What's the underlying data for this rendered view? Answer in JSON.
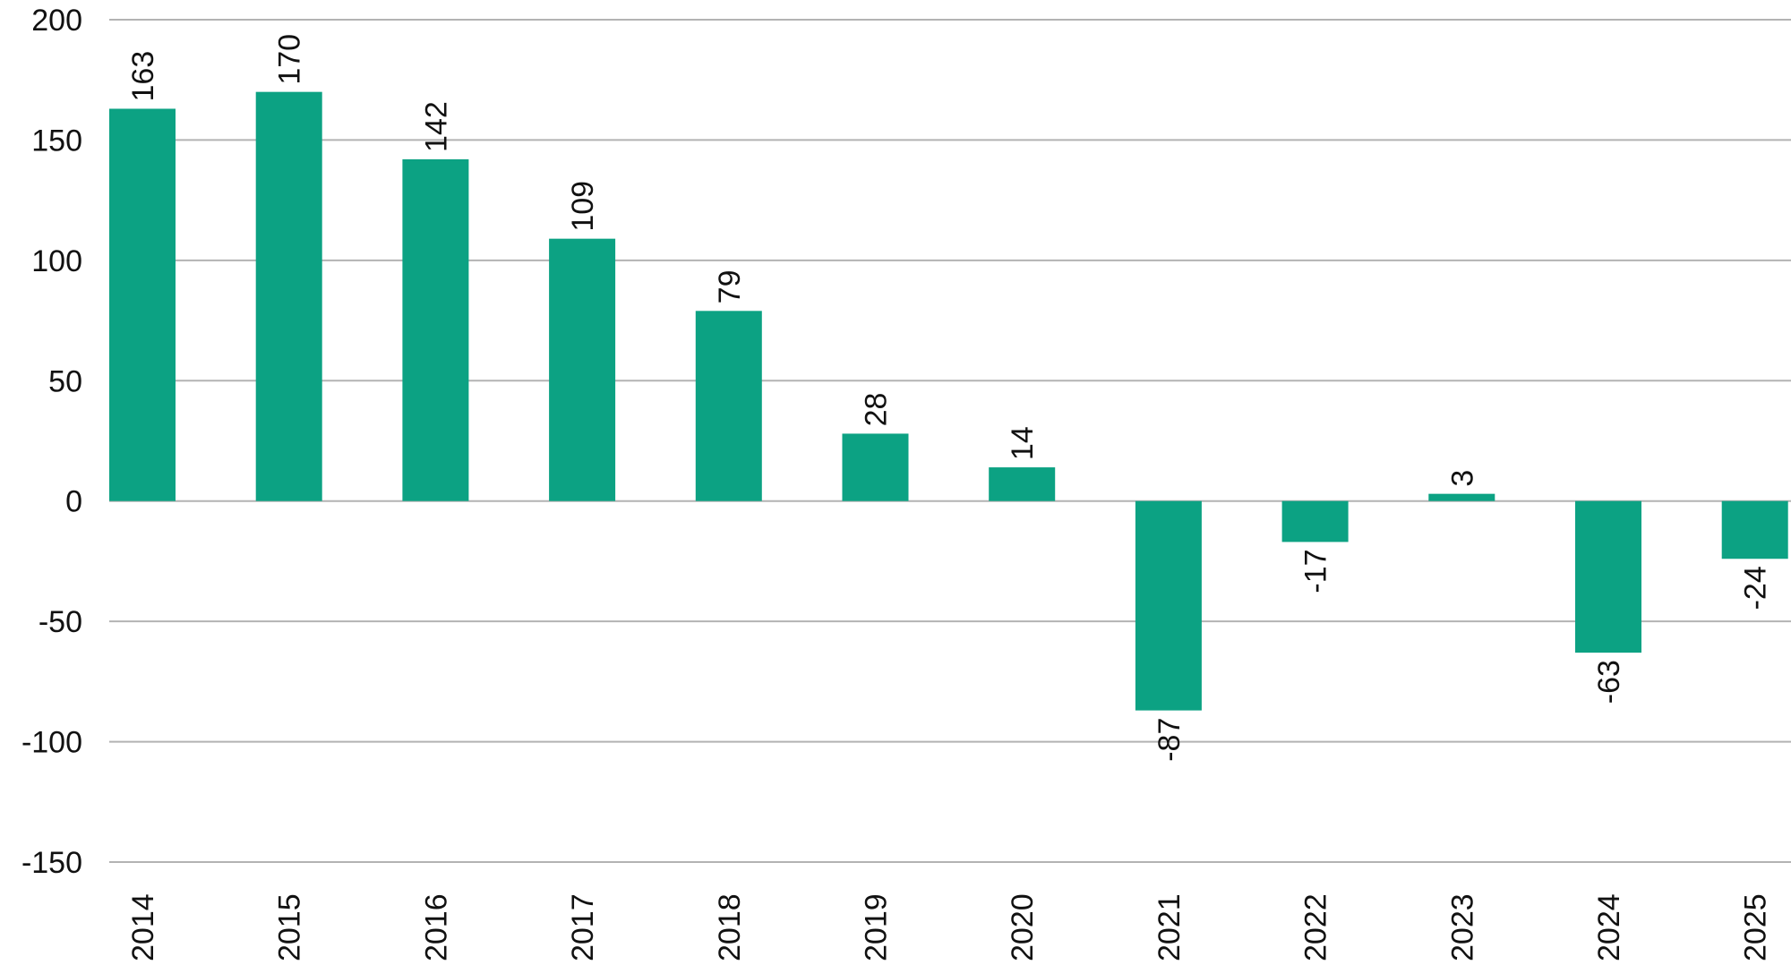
{
  "chart_data": {
    "type": "bar",
    "categories": [
      "2014",
      "2015",
      "2016",
      "2017",
      "2018",
      "2019",
      "2020",
      "2021",
      "2022",
      "2023",
      "2024",
      "2025"
    ],
    "values": [
      163,
      170,
      142,
      109,
      79,
      28,
      14,
      -87,
      -17,
      3,
      -63,
      -24
    ],
    "data_labels": [
      "163",
      "170",
      "142",
      "109",
      "79",
      "28",
      "14",
      "-87",
      "-17",
      "3",
      "-63",
      "-24"
    ],
    "ylim": [
      -150,
      200
    ],
    "yticks": [
      "-150",
      "-100",
      "-50",
      "0",
      "50",
      "100",
      "150",
      "200"
    ],
    "grid": true,
    "colors": {
      "bar": "#0ca283"
    }
  }
}
